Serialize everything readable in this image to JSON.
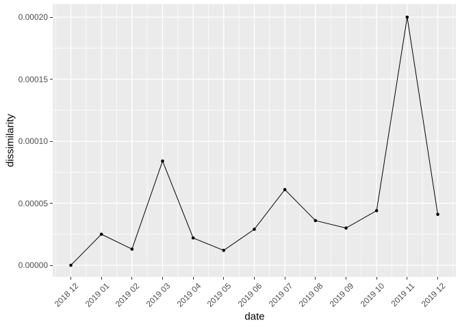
{
  "chart_data": {
    "type": "line",
    "title": "",
    "xlabel": "date",
    "ylabel": "dissimilarity",
    "categories": [
      "2018 12",
      "2019 01",
      "2019 02",
      "2019 03",
      "2019 04",
      "2019 05",
      "2019 06",
      "2019 07",
      "2019 08",
      "2019 09",
      "2019 10",
      "2019 11",
      "2019 12"
    ],
    "values": [
      0.0,
      2.5e-05,
      1.3e-05,
      8.4e-05,
      2.2e-05,
      1.2e-05,
      2.9e-05,
      6.1e-05,
      3.6e-05,
      3e-05,
      4.4e-05,
      0.0002,
      4.1e-05
    ],
    "ylim": [
      0,
      0.0002
    ],
    "yticks": [
      {
        "label": "0.00000",
        "value": 0.0
      },
      {
        "label": "0.00005",
        "value": 5e-05
      },
      {
        "label": "0.00010",
        "value": 0.0001
      },
      {
        "label": "0.00015",
        "value": 0.00015
      },
      {
        "label": "0.00020",
        "value": 0.0002
      }
    ],
    "legend": "none",
    "grid": "major-and-minor",
    "marker": "filled-point",
    "colors": {
      "panel_background": "#EBEBEB",
      "gridline": "#FFFFFF",
      "line": "#000000",
      "point": "#000000",
      "tick_label_text": "#4D4D4D",
      "axis_title_text": "#000000",
      "tick_mark": "#333333"
    }
  }
}
